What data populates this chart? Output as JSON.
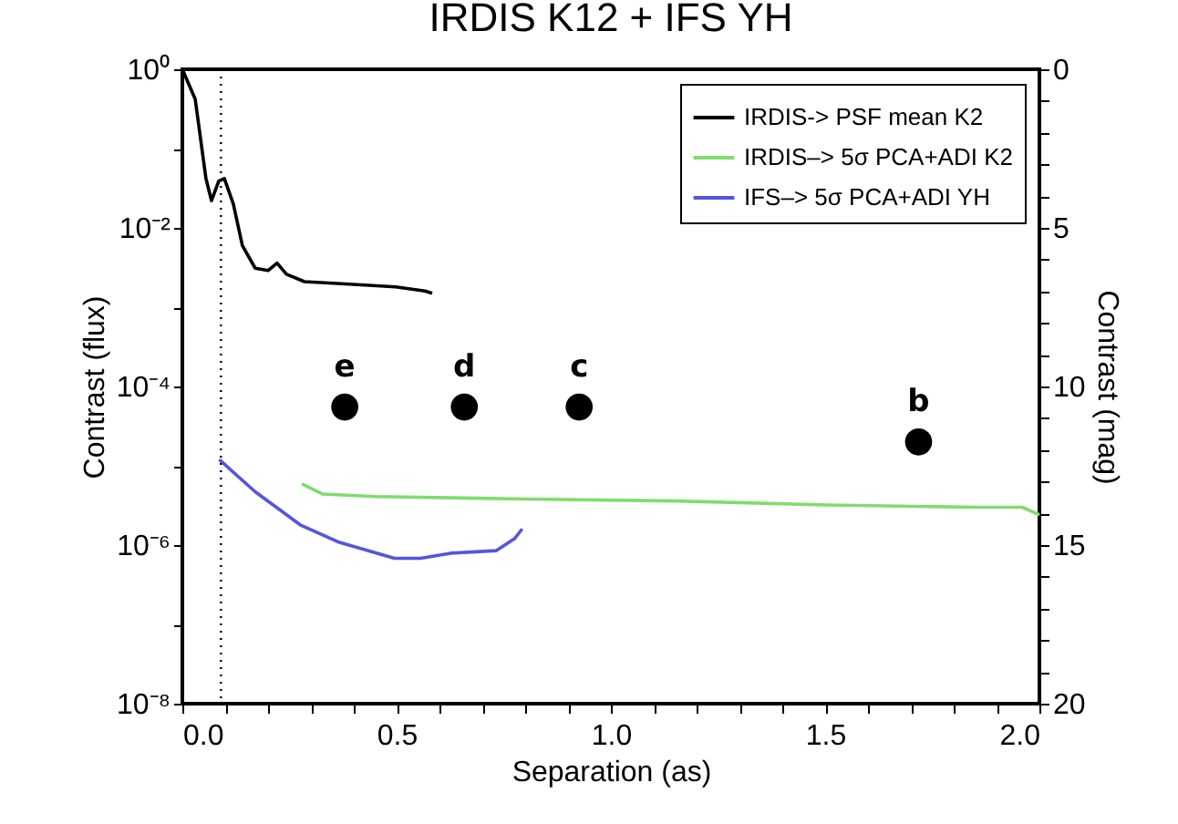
{
  "chart_data": {
    "type": "line",
    "title": "IRDIS K12 + IFS YH",
    "xlabel": "Separation (as)",
    "ylabel": "Contrast (flux)",
    "y2label": "Contrast (mag)",
    "log": "y",
    "grid": false,
    "legend": "top right",
    "xlim": [
      0,
      2
    ],
    "xticks": [
      {
        "value": 0,
        "label": "0.0"
      },
      {
        "value": 0.1,
        "label": null
      },
      {
        "value": 0.2,
        "label": null
      },
      {
        "value": 0.3,
        "label": null
      },
      {
        "value": 0.4,
        "label": null
      },
      {
        "value": 0.5,
        "label": "0.5"
      },
      {
        "value": 0.6,
        "label": null
      },
      {
        "value": 0.7,
        "label": null
      },
      {
        "value": 0.8,
        "label": null
      },
      {
        "value": 0.9,
        "label": null
      },
      {
        "value": 1,
        "label": "1.0"
      },
      {
        "value": 1.1,
        "label": null
      },
      {
        "value": 1.2,
        "label": null
      },
      {
        "value": 1.3,
        "label": null
      },
      {
        "value": 1.4,
        "label": null
      },
      {
        "value": 1.5,
        "label": "1.5"
      },
      {
        "value": 1.6,
        "label": null
      },
      {
        "value": 1.7,
        "label": null
      },
      {
        "value": 1.8,
        "label": null
      },
      {
        "value": 1.9,
        "label": null
      },
      {
        "value": 2,
        "label": "2.0"
      }
    ],
    "ylim": [
      1e-08,
      1
    ],
    "yticks": [
      {
        "value": 1e-08,
        "label": "10⁻⁸"
      },
      {
        "value": 1e-07,
        "label": null
      },
      {
        "value": 1e-06,
        "label": "10⁻⁶"
      },
      {
        "value": 1e-05,
        "label": null
      },
      {
        "value": 0.0001,
        "label": "10⁻⁴"
      },
      {
        "value": 0.001,
        "label": null
      },
      {
        "value": 0.01,
        "label": "10⁻²"
      },
      {
        "value": 0.1,
        "label": null
      },
      {
        "value": 1,
        "label": "10⁰"
      }
    ],
    "y2lim": [
      20,
      0
    ],
    "y2ticks": [
      0,
      {
        "value": 1,
        "label": null
      },
      {
        "value": 2,
        "label": null
      },
      {
        "value": 3,
        "label": null
      },
      {
        "value": 4,
        "label": null
      },
      5,
      {
        "value": 6,
        "label": null
      },
      {
        "value": 7,
        "label": null
      },
      {
        "value": 8,
        "label": null
      },
      {
        "value": 9,
        "label": null
      },
      10,
      {
        "value": 11,
        "label": null
      },
      {
        "value": 12,
        "label": null
      },
      {
        "value": 13,
        "label": null
      },
      {
        "value": 14,
        "label": null
      },
      15,
      {
        "value": 16,
        "label": null
      },
      {
        "value": 17,
        "label": null
      },
      {
        "value": 18,
        "label": null
      },
      {
        "value": 19,
        "label": null
      },
      20
    ],
    "ref_lines": [
      {
        "axis": "x",
        "value": 0.09,
        "label": null,
        "line_style": "dotted",
        "color": "#000000"
      }
    ],
    "annotations": [
      {
        "text": "e",
        "x": 0.379,
        "y": 5.5e-05
      },
      {
        "text": "d",
        "x": 0.658,
        "y": 5.5e-05
      },
      {
        "text": "c",
        "x": 0.926,
        "y": 5.5e-05
      },
      {
        "text": "b",
        "x": 1.718,
        "y": 2e-05
      }
    ],
    "series": [
      {
        "name": "IRDIS-> PSF mean K2",
        "color": "#000000",
        "marker": "none",
        "x": [
          0,
          0.03,
          0.055,
          0.068,
          0.085,
          0.098,
          0.119,
          0.14,
          0.17,
          0.2,
          0.221,
          0.243,
          0.285,
          0.353,
          0.426,
          0.498,
          0.566,
          0.583
        ],
        "values": [
          1,
          0.42,
          0.042,
          0.022,
          0.039,
          0.042,
          0.02,
          0.006,
          0.0031,
          0.0029,
          0.0036,
          0.0026,
          0.0021,
          0.002,
          0.0019,
          0.0018,
          0.0016,
          0.0015
        ]
      },
      {
        "name": "IRDIS–> 5σ PCA+ADI K2",
        "color": "#7fdc6f",
        "marker": "none",
        "x": [
          0.279,
          0.328,
          0.451,
          0.8,
          1.153,
          1.504,
          1.855,
          1.96,
          1.986,
          2
        ],
        "values": [
          5.9e-06,
          4.4e-06,
          4.1e-06,
          3.8e-06,
          3.6e-06,
          3.2e-06,
          3e-06,
          3e-06,
          2.6e-06,
          2.4e-06
        ]
      },
      {
        "name": "IFS–> 5σ PCA+ADI YH",
        "color": "#5555dd",
        "marker": "none",
        "x": [
          0.086,
          0.17,
          0.275,
          0.363,
          0.495,
          0.556,
          0.626,
          0.732,
          0.775,
          0.793
        ],
        "values": [
          1.2e-05,
          4.7e-06,
          1.8e-06,
          1.1e-06,
          6.8e-07,
          6.8e-07,
          7.9e-07,
          8.5e-07,
          1.2e-06,
          1.6e-06
        ]
      },
      {
        "type": "scatter",
        "color": "#000000",
        "marker": "circle",
        "x": [
          0.379,
          0.658,
          0.926,
          1.718
        ],
        "values": [
          5.5e-05,
          5.5e-05,
          5.5e-05,
          2e-05
        ]
      }
    ]
  }
}
